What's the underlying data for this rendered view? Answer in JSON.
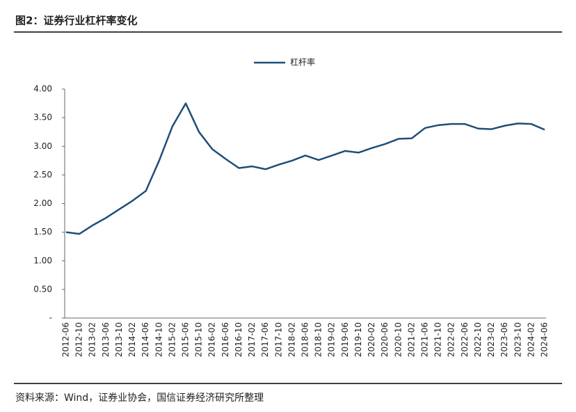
{
  "chart_data": {
    "type": "line",
    "title": "图2：证券行业杠杆率变化",
    "source": "资料来源：Wind，证券业协会，国信证券经济研究所整理",
    "categories": [
      "2012-06",
      "2012-10",
      "2013-02",
      "2013-06",
      "2013-10",
      "2014-02",
      "2014-06",
      "2014-10",
      "2015-02",
      "2015-06",
      "2015-10",
      "2016-02",
      "2016-06",
      "2016-10",
      "2017-02",
      "2017-06",
      "2017-10",
      "2018-02",
      "2018-06",
      "2018-10",
      "2019-02",
      "2019-06",
      "2019-10",
      "2020-02",
      "2020-06",
      "2020-10",
      "2021-02",
      "2021-06",
      "2021-10",
      "2022-02",
      "2022-06",
      "2022-10",
      "2023-02",
      "2023-06",
      "2023-10",
      "2024-02",
      "2024-06"
    ],
    "series": [
      {
        "name": "杠杆率",
        "color": "#1f4e79",
        "values": [
          1.5,
          1.47,
          1.62,
          1.75,
          1.9,
          2.05,
          2.22,
          2.75,
          3.35,
          3.75,
          3.25,
          2.95,
          2.78,
          2.62,
          2.65,
          2.6,
          2.68,
          2.75,
          2.84,
          2.76,
          2.84,
          2.92,
          2.89,
          2.97,
          3.04,
          3.13,
          3.14,
          3.32,
          3.37,
          3.39,
          3.39,
          3.31,
          3.3,
          3.36,
          3.4,
          3.39,
          3.29
        ]
      }
    ],
    "ylim": [
      0,
      4
    ],
    "yticks": [
      {
        "value": 0,
        "label": "-"
      },
      {
        "value": 0.5,
        "label": "0.50"
      },
      {
        "value": 1,
        "label": "1.00"
      },
      {
        "value": 1.5,
        "label": "1.50"
      },
      {
        "value": 2,
        "label": "2.00"
      },
      {
        "value": 2.5,
        "label": "2.50"
      },
      {
        "value": 3,
        "label": "3.00"
      },
      {
        "value": 3.5,
        "label": "3.50"
      },
      {
        "value": 4,
        "label": "4.00"
      }
    ],
    "legend": "top"
  }
}
